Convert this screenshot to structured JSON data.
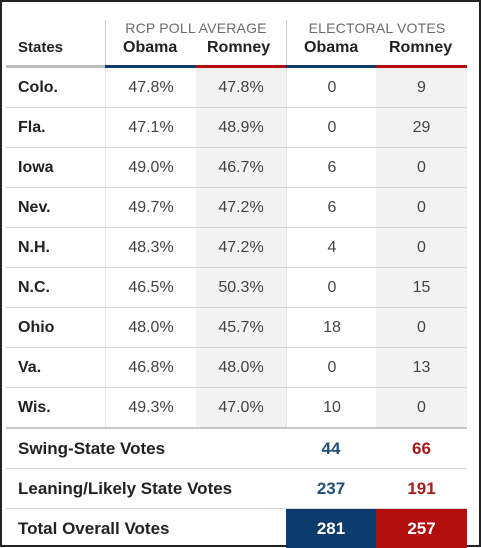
{
  "header": {
    "states_label": "States",
    "poll_group": "RCP POLL AVERAGE",
    "ev_group": "ELECTORAL VOTES",
    "obama": "Obama",
    "romney": "Romney"
  },
  "colors": {
    "obama": "#0d3b6b",
    "romney": "#b30e0e"
  },
  "rows": [
    {
      "state": "Colo.",
      "poll_obama": "47.8%",
      "poll_romney": "47.8%",
      "ev_obama": "0",
      "ev_romney": "9"
    },
    {
      "state": "Fla.",
      "poll_obama": "47.1%",
      "poll_romney": "48.9%",
      "ev_obama": "0",
      "ev_romney": "29"
    },
    {
      "state": "Iowa",
      "poll_obama": "49.0%",
      "poll_romney": "46.7%",
      "ev_obama": "6",
      "ev_romney": "0"
    },
    {
      "state": "Nev.",
      "poll_obama": "49.7%",
      "poll_romney": "47.2%",
      "ev_obama": "6",
      "ev_romney": "0"
    },
    {
      "state": "N.H.",
      "poll_obama": "48.3%",
      "poll_romney": "47.2%",
      "ev_obama": "4",
      "ev_romney": "0"
    },
    {
      "state": "N.C.",
      "poll_obama": "46.5%",
      "poll_romney": "50.3%",
      "ev_obama": "0",
      "ev_romney": "15"
    },
    {
      "state": "Ohio",
      "poll_obama": "48.0%",
      "poll_romney": "45.7%",
      "ev_obama": "18",
      "ev_romney": "0"
    },
    {
      "state": "Va.",
      "poll_obama": "46.8%",
      "poll_romney": "48.0%",
      "ev_obama": "0",
      "ev_romney": "13"
    },
    {
      "state": "Wis.",
      "poll_obama": "49.3%",
      "poll_romney": "47.0%",
      "ev_obama": "10",
      "ev_romney": "0"
    }
  ],
  "summary": {
    "swing": {
      "label": "Swing-State Votes",
      "obama": "44",
      "romney": "66"
    },
    "leaning": {
      "label": "Leaning/Likely State Votes",
      "obama": "237",
      "romney": "191"
    },
    "total": {
      "label": "Total Overall Votes",
      "obama": "281",
      "romney": "257"
    }
  }
}
